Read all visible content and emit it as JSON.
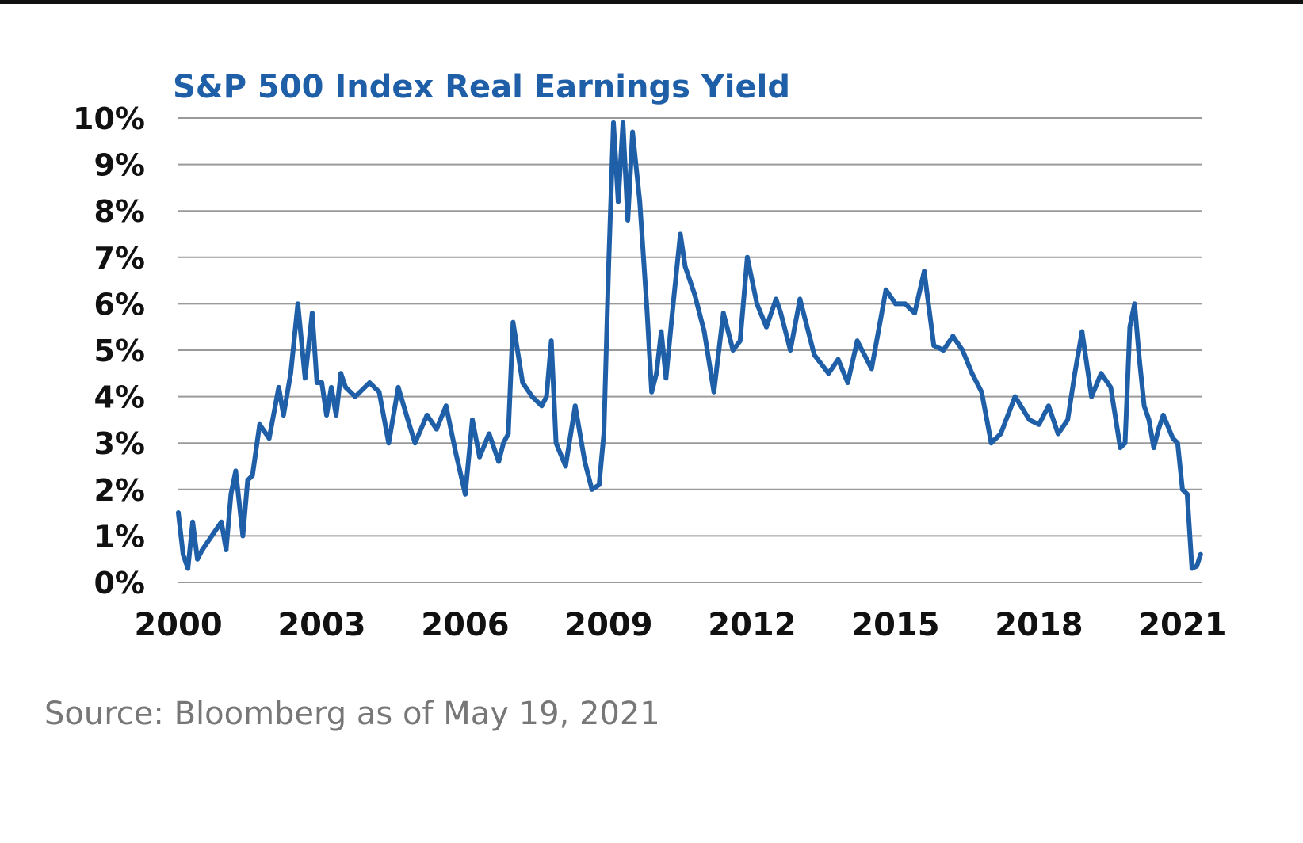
{
  "chart_data": {
    "type": "line",
    "title": "S&P 500 Index Real Earnings Yield",
    "xlabel": "",
    "ylabel": "",
    "xlim": [
      2000,
      2021.4
    ],
    "ylim": [
      0,
      10
    ],
    "grid": true,
    "x_ticks": [
      "2000",
      "2003",
      "2006",
      "2009",
      "2012",
      "2015",
      "2018",
      "2021"
    ],
    "y_ticks": [
      "0%",
      "1%",
      "2%",
      "3%",
      "4%",
      "5%",
      "6%",
      "7%",
      "8%",
      "9%",
      "10%"
    ],
    "series": [
      {
        "name": "S&P 500 Index Real Earnings Yield",
        "color": "#1f5fa8",
        "x": [
          2000.0,
          2000.1,
          2000.2,
          2000.3,
          2000.4,
          2000.5,
          2000.7,
          2000.9,
          2001.0,
          2001.1,
          2001.2,
          2001.35,
          2001.45,
          2001.55,
          2001.7,
          2001.9,
          2002.1,
          2002.2,
          2002.35,
          2002.5,
          2002.65,
          2002.8,
          2002.9,
          2003.0,
          2003.1,
          2003.2,
          2003.3,
          2003.4,
          2003.5,
          2003.7,
          2004.0,
          2004.2,
          2004.4,
          2004.6,
          2004.8,
          2004.95,
          2005.2,
          2005.4,
          2005.6,
          2005.8,
          2006.0,
          2006.15,
          2006.3,
          2006.5,
          2006.7,
          2006.8,
          2006.9,
          2007.0,
          2007.2,
          2007.4,
          2007.6,
          2007.7,
          2007.8,
          2007.9,
          2008.1,
          2008.3,
          2008.5,
          2008.65,
          2008.8,
          2008.9,
          2009.0,
          2009.1,
          2009.2,
          2009.3,
          2009.4,
          2009.5,
          2009.65,
          2009.8,
          2009.9,
          2010.0,
          2010.1,
          2010.2,
          2010.35,
          2010.5,
          2010.6,
          2010.8,
          2011.0,
          2011.2,
          2011.4,
          2011.6,
          2011.75,
          2011.9,
          2012.1,
          2012.3,
          2012.5,
          2012.6,
          2012.8,
          2013.0,
          2013.3,
          2013.6,
          2013.8,
          2014.0,
          2014.2,
          2014.5,
          2014.8,
          2015.0,
          2015.2,
          2015.4,
          2015.6,
          2015.8,
          2016.0,
          2016.2,
          2016.4,
          2016.6,
          2016.8,
          2017.0,
          2017.2,
          2017.5,
          2017.8,
          2018.0,
          2018.2,
          2018.4,
          2018.6,
          2018.75,
          2018.9,
          2019.1,
          2019.3,
          2019.5,
          2019.7,
          2019.8,
          2019.9,
          2020.0,
          2020.1,
          2020.2,
          2020.3,
          2020.4,
          2020.5,
          2020.6,
          2020.8,
          2020.9,
          2021.0,
          2021.1,
          2021.2,
          2021.3,
          2021.38
        ],
        "values": [
          1.5,
          0.6,
          0.3,
          1.3,
          0.5,
          0.7,
          1.0,
          1.3,
          0.7,
          1.9,
          2.4,
          1.0,
          2.2,
          2.3,
          3.4,
          3.1,
          4.2,
          3.6,
          4.5,
          6.0,
          4.4,
          5.8,
          4.3,
          4.3,
          3.6,
          4.2,
          3.6,
          4.5,
          4.2,
          4.0,
          4.3,
          4.1,
          3.0,
          4.2,
          3.5,
          3.0,
          3.6,
          3.3,
          3.8,
          2.8,
          1.9,
          3.5,
          2.7,
          3.2,
          2.6,
          3.0,
          3.2,
          5.6,
          4.3,
          4.0,
          3.8,
          4.0,
          5.2,
          3.0,
          2.5,
          3.8,
          2.6,
          2.0,
          2.1,
          3.2,
          6.8,
          9.9,
          8.2,
          9.9,
          7.8,
          9.7,
          8.2,
          5.9,
          4.1,
          4.5,
          5.4,
          4.4,
          6.0,
          7.5,
          6.8,
          6.2,
          5.4,
          4.1,
          5.8,
          5.0,
          5.2,
          7.0,
          6.0,
          5.5,
          6.1,
          5.8,
          5.0,
          6.1,
          4.9,
          4.5,
          4.8,
          4.3,
          5.2,
          4.6,
          6.3,
          6.0,
          6.0,
          5.8,
          6.7,
          5.1,
          5.0,
          5.3,
          5.0,
          4.5,
          4.1,
          3.0,
          3.2,
          4.0,
          3.5,
          3.4,
          3.8,
          3.2,
          3.5,
          4.5,
          5.4,
          4.0,
          4.5,
          4.2,
          2.9,
          3.0,
          5.5,
          6.0,
          4.8,
          3.8,
          3.5,
          2.9,
          3.3,
          3.6,
          3.1,
          3.0,
          2.0,
          1.9,
          0.3,
          0.35,
          0.6
        ]
      }
    ]
  },
  "source": "Source: Bloomberg as of May 19, 2021"
}
